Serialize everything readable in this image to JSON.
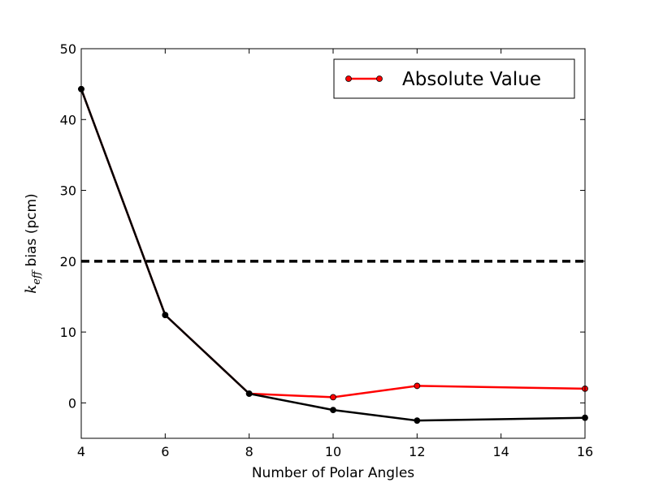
{
  "chart_data": {
    "type": "line",
    "xlabel": "Number of Polar Angles",
    "ylabel": {
      "italic_base": "k",
      "subscript": "eff",
      "rest": " bias (pcm)"
    },
    "x": [
      4,
      6,
      8,
      10,
      12,
      16
    ],
    "xlim": [
      4,
      16
    ],
    "ylim": [
      -5,
      50
    ],
    "xticks": [
      4,
      6,
      8,
      10,
      12,
      14,
      16
    ],
    "yticks": [
      0,
      10,
      20,
      30,
      40,
      50
    ],
    "grid": false,
    "legend_position": "top-right",
    "series": [
      {
        "name": "Absolute Value",
        "color": "#ff0000",
        "marker": "circle",
        "in_legend": true,
        "values": [
          44.3,
          12.4,
          1.3,
          0.8,
          2.4,
          2.0
        ]
      },
      {
        "color": "#000000",
        "marker": "circle",
        "in_legend": false,
        "values": [
          44.3,
          12.4,
          1.3,
          -1.0,
          -2.5,
          -2.1
        ]
      }
    ],
    "reference_lines": [
      {
        "y": 20,
        "style": "dashed",
        "color": "#000000"
      }
    ]
  }
}
